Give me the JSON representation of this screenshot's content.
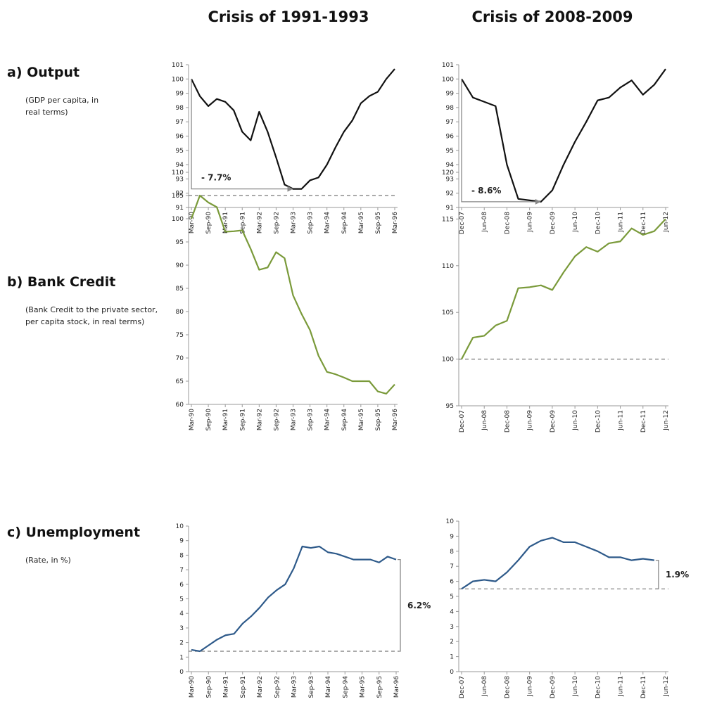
{
  "columns": [
    "Crisis of 1991-1993",
    "Crisis of 2008-2009"
  ],
  "rows": [
    {
      "label": "a) Output",
      "note": "(GDP per capita, in real terms)"
    },
    {
      "label": "b) Bank Credit",
      "note": "(Bank Credit to the private sector, per capita stock, in real terms)"
    },
    {
      "label": "c) Unemployment",
      "note": "(Rate, in %)"
    }
  ],
  "chart_data": [
    {
      "type": "line",
      "color": "#111111",
      "categories": [
        "Mar-90",
        null,
        "Sep-90",
        null,
        "Mar-91",
        null,
        "Sep-91",
        null,
        "Mar-92",
        null,
        "Sep-92",
        null,
        "Mar-93",
        null,
        "Sep-93",
        null,
        "Mar-94",
        null,
        "Sep-94",
        null,
        "Mar-95",
        null,
        "Sep-95",
        null,
        "Mar-96"
      ],
      "values": [
        100,
        98.8,
        98.1,
        98.6,
        98.4,
        97.8,
        96.3,
        95.7,
        97.7,
        96.3,
        94.5,
        92.6,
        92.3,
        92.3,
        92.9,
        93.1,
        94,
        95.2,
        96.3,
        97.1,
        98.3,
        98.8,
        99.1,
        100,
        100.7
      ],
      "ylim": [
        91,
        101
      ],
      "yticks": [
        91,
        92,
        93,
        94,
        95,
        96,
        97,
        98,
        99,
        100,
        101
      ],
      "annotation": "- 7.7%"
    },
    {
      "type": "line",
      "color": "#111111",
      "categories": [
        "Dec-07",
        null,
        "Jun-08",
        null,
        "Dec-08",
        null,
        "Jun-09",
        null,
        "Dec-09",
        null,
        "Jun-10",
        null,
        "Dec-10",
        null,
        "Jun-11",
        null,
        "Dec-11",
        null,
        "Jun-12"
      ],
      "values": [
        100,
        98.7,
        98.4,
        98.1,
        94,
        91.6,
        91.5,
        91.4,
        92.2,
        94,
        95.6,
        97,
        98.5,
        98.7,
        99.4,
        99.9,
        98.9,
        99.6,
        100.7
      ],
      "ylim": [
        91,
        101
      ],
      "yticks": [
        91,
        92,
        93,
        94,
        95,
        96,
        97,
        98,
        99,
        100,
        101
      ],
      "annotation": "- 8.6%"
    },
    {
      "type": "line",
      "color": "#7a9a3a",
      "categories": [
        "Mar-90",
        null,
        "Sep-90",
        null,
        "Mar-91",
        null,
        "Sep-91",
        null,
        "Mar-92",
        null,
        "Sep-92",
        null,
        "Mar-93",
        null,
        "Sep-93",
        null,
        "Mar-94",
        null,
        "Sep-94",
        null,
        "Mar-95",
        null,
        "Sep-95",
        null,
        "Mar-96"
      ],
      "values": [
        100,
        105,
        103.5,
        102.5,
        97.2,
        97.3,
        97.5,
        93.5,
        89,
        89.5,
        92.8,
        91.5,
        83.5,
        79.5,
        76,
        70.5,
        67,
        66.5,
        65.8,
        65,
        65,
        65,
        62.8,
        62.3,
        64.3
      ],
      "ylim": [
        60,
        110
      ],
      "yticks": [
        60,
        65,
        70,
        75,
        80,
        85,
        90,
        95,
        100,
        105,
        110
      ],
      "ref_line": 105
    },
    {
      "type": "line",
      "color": "#7a9a3a",
      "categories": [
        "Dec-07",
        null,
        "Jun-08",
        null,
        "Dec-08",
        null,
        "Jun-09",
        null,
        "Dec-09",
        null,
        "Jun-10",
        null,
        "Dec-10",
        null,
        "Jun-11",
        null,
        "Dec-11",
        null,
        "Jun-12"
      ],
      "values": [
        100,
        102.3,
        102.5,
        103.6,
        104.1,
        107.6,
        107.7,
        107.9,
        107.4,
        109.3,
        111,
        112,
        111.5,
        112.4,
        112.6,
        114,
        113.3,
        113.7,
        115
      ],
      "ylim": [
        95,
        120
      ],
      "yticks": [
        95,
        100,
        105,
        110,
        115,
        120
      ],
      "ref_line": 100
    },
    {
      "type": "line",
      "color": "#2e5a8a",
      "categories": [
        "Mar-90",
        null,
        "Sep-90",
        null,
        "Mar-91",
        null,
        "Sep-91",
        null,
        "Mar-92",
        null,
        "Sep-92",
        null,
        "Mar-93",
        null,
        "Sep-93",
        null,
        "Mar-94",
        null,
        "Sep-94",
        null,
        "Mar-95",
        null,
        "Sep-95",
        null,
        "Mar-96"
      ],
      "values": [
        1.5,
        1.4,
        1.8,
        2.2,
        2.5,
        2.6,
        3.3,
        3.8,
        4.4,
        5.1,
        5.6,
        6,
        7.1,
        8.6,
        8.5,
        8.6,
        8.2,
        8.1,
        7.9,
        7.7,
        7.7,
        7.7,
        7.5,
        7.9,
        7.7
      ],
      "ylim": [
        0,
        10
      ],
      "yticks": [
        0,
        1,
        2,
        3,
        4,
        5,
        6,
        7,
        8,
        9,
        10
      ],
      "ref_line": 1.4,
      "annotation": "6.2%"
    },
    {
      "type": "line",
      "color": "#2e5a8a",
      "categories": [
        "Dec-07",
        null,
        "Jun-08",
        null,
        "Dec-08",
        null,
        "Jun-09",
        null,
        "Dec-09",
        null,
        "Jun-10",
        null,
        "Dec-10",
        null,
        "Jun-11",
        null,
        "Dec-11",
        null,
        "Jun-12"
      ],
      "values": [
        5.5,
        6,
        6.1,
        6,
        6.6,
        7.4,
        8.3,
        8.7,
        8.9,
        8.6,
        8.6,
        8.3,
        8,
        7.6,
        7.6,
        7.4,
        7.5,
        7.4,
        null
      ],
      "ylim": [
        0,
        10
      ],
      "yticks": [
        0,
        1,
        2,
        3,
        4,
        5,
        6,
        7,
        8,
        9,
        10
      ],
      "ref_line": 5.5,
      "annotation": "1.9%"
    }
  ]
}
